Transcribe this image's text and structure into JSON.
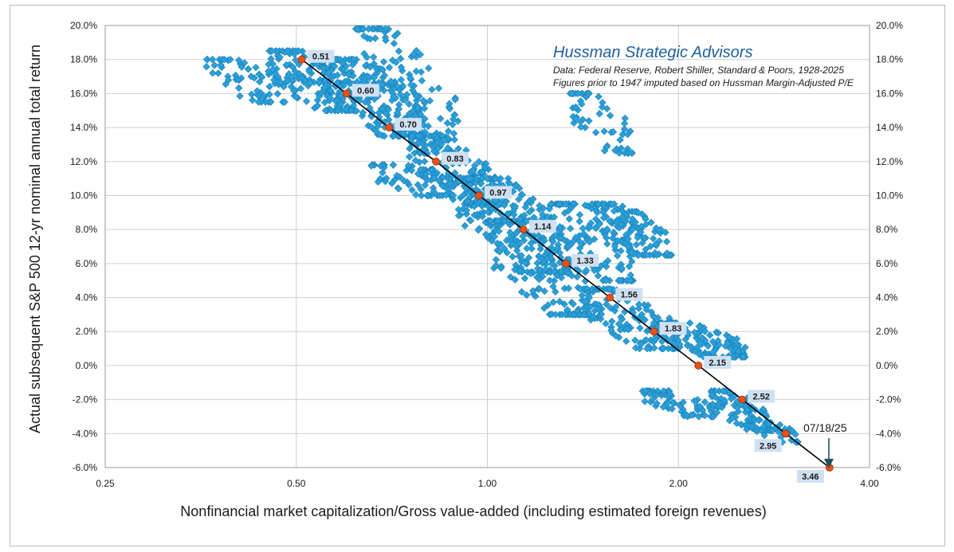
{
  "chart_data": {
    "type": "scatter",
    "title": "",
    "xlabel": "Nonfinancial market capitalization/Gross value-added (including estimated foreign revenues)",
    "ylabel": "Actual subsequent S&P 500 12-yr nominal annual total return",
    "x_scale": "log2",
    "xlim": [
      0.25,
      4.0
    ],
    "ylim": [
      -6.0,
      20.0
    ],
    "x_ticks": [
      "0.25",
      "0.50",
      "1.00",
      "2.00",
      "4.00"
    ],
    "y_ticks_left": [
      "20.0%",
      "18.0%",
      "16.0%",
      "14.0%",
      "12.0%",
      "10.0%",
      "8.0%",
      "6.0%",
      "4.0%",
      "2.0%",
      "0.0%",
      "-2.0%",
      "-4.0%",
      "-6.0%"
    ],
    "y_ticks_right": [
      "20.0%",
      "18.0%",
      "16.0%",
      "14.0%",
      "12.0%",
      "10.0%",
      "8.0%",
      "6.0%",
      "4.0%",
      "2.0%",
      "0.0%",
      "-2.0%",
      "-4.0%",
      "-6.0%"
    ],
    "grid": true,
    "annotations": {
      "brand": "Hussman Strategic Advisors",
      "source_line1": "Data: Federal Reserve, Robert Shiller, Standard & Poors, 1928-2025",
      "source_line2": "Figures prior to 1947 imputed based on Hussman Margin-Adjusted P/E",
      "current_date": "07/18/25"
    },
    "colors": {
      "scatter": "#2aa0d8",
      "scatter_edge": "#1a7fb8",
      "fit_line": "#000000",
      "fit_point": "#e8501a",
      "label_bg": "#cfe0f2"
    },
    "fit_points": [
      {
        "x": 0.51,
        "y": 18.0,
        "label": "0.51"
      },
      {
        "x": 0.6,
        "y": 16.0,
        "label": "0.60"
      },
      {
        "x": 0.7,
        "y": 14.0,
        "label": "0.70"
      },
      {
        "x": 0.83,
        "y": 12.0,
        "label": "0.83"
      },
      {
        "x": 0.97,
        "y": 10.0,
        "label": "0.97"
      },
      {
        "x": 1.14,
        "y": 8.0,
        "label": "1.14"
      },
      {
        "x": 1.33,
        "y": 6.0,
        "label": "1.33"
      },
      {
        "x": 1.56,
        "y": 4.0,
        "label": "1.56"
      },
      {
        "x": 1.83,
        "y": 2.0,
        "label": "1.83"
      },
      {
        "x": 2.15,
        "y": 0.0,
        "label": "2.15"
      },
      {
        "x": 2.52,
        "y": -2.0,
        "label": "2.52"
      },
      {
        "x": 2.95,
        "y": -4.0,
        "label": "2.95"
      },
      {
        "x": 3.46,
        "y": -6.0,
        "label": "3.46"
      }
    ],
    "scatter_clusters": [
      {
        "x": [
          0.36,
          0.48
        ],
        "y": [
          15.5,
          18.0
        ],
        "n": 60
      },
      {
        "x": [
          0.45,
          0.62
        ],
        "y": [
          15.0,
          18.5
        ],
        "n": 160
      },
      {
        "x": [
          0.55,
          0.8
        ],
        "y": [
          13.5,
          18.0
        ],
        "n": 220
      },
      {
        "x": [
          0.62,
          0.9
        ],
        "y": [
          12.5,
          19.8
        ],
        "n": 160
      },
      {
        "x": [
          0.75,
          1.05
        ],
        "y": [
          9.5,
          13.5
        ],
        "n": 180
      },
      {
        "x": [
          0.65,
          0.9
        ],
        "y": [
          10.0,
          11.8
        ],
        "n": 60
      },
      {
        "x": [
          0.9,
          1.35
        ],
        "y": [
          5.5,
          11.0
        ],
        "n": 260
      },
      {
        "x": [
          1.0,
          1.45
        ],
        "y": [
          3.0,
          8.5
        ],
        "n": 170
      },
      {
        "x": [
          1.25,
          1.7
        ],
        "y": [
          5.0,
          9.5
        ],
        "n": 110
      },
      {
        "x": [
          1.45,
          1.95
        ],
        "y": [
          6.5,
          9.5
        ],
        "n": 130
      },
      {
        "x": [
          1.35,
          1.7
        ],
        "y": [
          12.5,
          16.0
        ],
        "n": 60
      },
      {
        "x": [
          1.4,
          2.0
        ],
        "y": [
          1.0,
          4.5
        ],
        "n": 130
      },
      {
        "x": [
          1.8,
          2.55
        ],
        "y": [
          0.5,
          2.5
        ],
        "n": 130
      },
      {
        "x": [
          1.75,
          2.3
        ],
        "y": [
          -3.0,
          -1.5
        ],
        "n": 70
      },
      {
        "x": [
          2.25,
          2.8
        ],
        "y": [
          -3.8,
          -1.5
        ],
        "n": 90
      },
      {
        "x": [
          2.6,
          3.1
        ],
        "y": [
          -4.5,
          -3.2
        ],
        "n": 40
      }
    ]
  }
}
